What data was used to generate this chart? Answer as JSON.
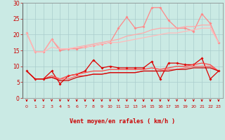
{
  "xlabel": "Vent moyen/en rafales ( km/h )",
  "background_color": "#caeae4",
  "grid_color": "#aacccc",
  "x": [
    0,
    1,
    2,
    3,
    4,
    5,
    6,
    7,
    8,
    9,
    10,
    11,
    12,
    13,
    14,
    15,
    16,
    17,
    18,
    19,
    20,
    21,
    22,
    23
  ],
  "series": [
    {
      "y": [
        20.5,
        14.5,
        14.5,
        18.5,
        15.0,
        15.5,
        15.5,
        16.0,
        16.5,
        17.0,
        17.5,
        22.0,
        25.5,
        22.0,
        22.5,
        28.5,
        28.5,
        24.5,
        22.0,
        22.0,
        21.0,
        26.5,
        23.5,
        17.5
      ],
      "color": "#ff8888",
      "lw": 0.9,
      "marker": "D",
      "ms": 2.0
    },
    {
      "y": [
        20.5,
        14.5,
        14.5,
        18.5,
        15.5,
        15.5,
        16.0,
        16.5,
        17.0,
        17.5,
        18.0,
        18.5,
        19.5,
        20.0,
        20.5,
        21.5,
        22.0,
        22.0,
        22.0,
        22.5,
        22.5,
        23.0,
        23.0,
        17.5
      ],
      "color": "#ffaaaa",
      "lw": 0.9,
      "marker": null,
      "ms": 0
    },
    {
      "y": [
        20.5,
        14.5,
        14.5,
        16.0,
        15.5,
        15.5,
        16.0,
        16.0,
        16.5,
        17.0,
        17.5,
        17.5,
        18.0,
        18.5,
        19.0,
        19.5,
        20.0,
        20.5,
        20.5,
        21.0,
        21.5,
        22.0,
        22.0,
        17.5
      ],
      "color": "#ffbbbb",
      "lw": 0.9,
      "marker": null,
      "ms": 0
    },
    {
      "y": [
        8.5,
        6.0,
        6.0,
        8.5,
        4.5,
        7.0,
        7.5,
        8.5,
        12.0,
        9.5,
        10.0,
        9.5,
        9.5,
        9.5,
        9.5,
        11.5,
        6.0,
        11.0,
        11.0,
        10.5,
        10.5,
        12.5,
        6.0,
        8.5
      ],
      "color": "#dd0000",
      "lw": 0.9,
      "marker": "D",
      "ms": 2.0
    },
    {
      "y": [
        8.5,
        6.0,
        6.0,
        7.0,
        6.0,
        7.0,
        7.5,
        8.0,
        8.5,
        8.5,
        9.0,
        9.0,
        9.0,
        9.0,
        9.0,
        9.5,
        9.0,
        9.5,
        10.0,
        10.0,
        10.5,
        11.0,
        10.5,
        8.5
      ],
      "color": "#ff4444",
      "lw": 0.9,
      "marker": null,
      "ms": 0
    },
    {
      "y": [
        8.5,
        6.0,
        6.0,
        6.5,
        6.0,
        6.0,
        7.0,
        7.0,
        7.5,
        7.5,
        8.0,
        8.0,
        8.0,
        8.0,
        8.5,
        8.5,
        8.5,
        9.0,
        9.0,
        9.5,
        10.0,
        10.0,
        10.0,
        8.5
      ],
      "color": "#ff6666",
      "lw": 0.9,
      "marker": null,
      "ms": 0
    },
    {
      "y": [
        8.5,
        6.0,
        6.0,
        6.5,
        5.5,
        5.5,
        6.5,
        7.0,
        7.5,
        7.5,
        8.0,
        8.0,
        8.0,
        8.0,
        8.5,
        8.5,
        8.5,
        8.5,
        9.0,
        9.0,
        9.5,
        9.5,
        9.5,
        8.5
      ],
      "color": "#cc0000",
      "lw": 0.9,
      "marker": null,
      "ms": 0
    }
  ],
  "ylim": [
    0,
    30
  ],
  "yticks": [
    0,
    5,
    10,
    15,
    20,
    25,
    30
  ],
  "xlim": [
    -0.5,
    23.5
  ],
  "xticks": [
    0,
    1,
    2,
    3,
    4,
    5,
    6,
    7,
    8,
    9,
    10,
    11,
    12,
    13,
    14,
    15,
    16,
    17,
    18,
    19,
    20,
    21,
    22,
    23
  ],
  "arrow_color": "#cc0000",
  "tick_color": "#cc0000",
  "label_color": "#cc0000",
  "spine_color": "#888888"
}
